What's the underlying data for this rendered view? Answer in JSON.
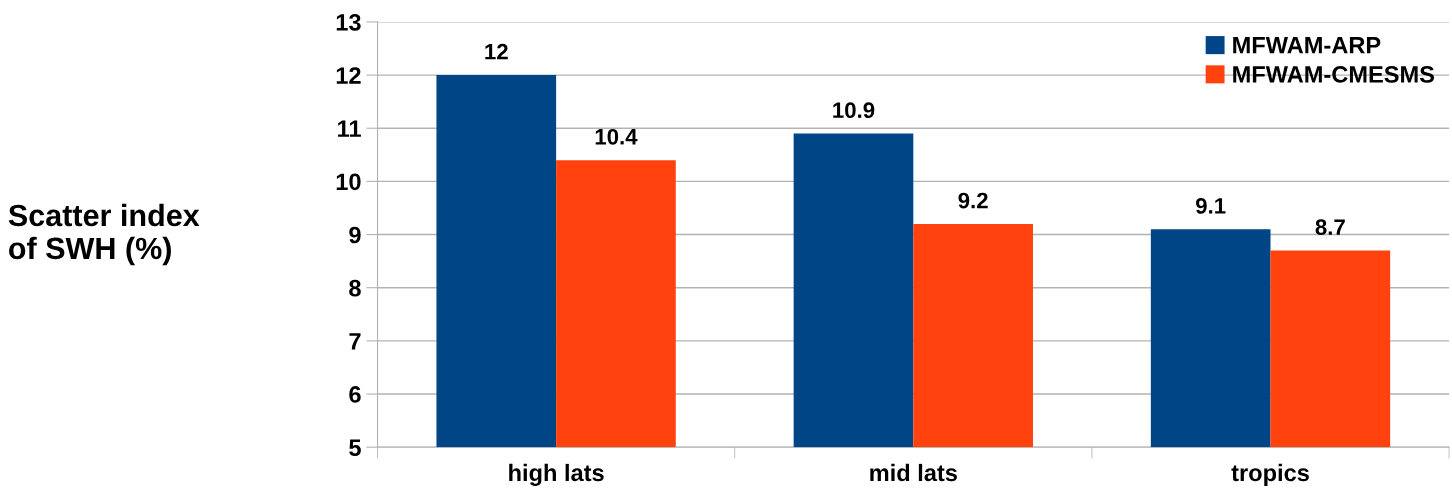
{
  "chart_data": {
    "type": "bar",
    "ylabel": "Scatter index\nof SWH (%)",
    "categories": [
      "high lats",
      "mid lats",
      "tropics"
    ],
    "series": [
      {
        "name": "MFWAM-ARP",
        "color": "#004586",
        "values": [
          12,
          10.9,
          9.1
        ]
      },
      {
        "name": "MFWAM-CMESMS",
        "color": "#ff420e",
        "values": [
          10.4,
          9.2,
          8.7
        ]
      }
    ],
    "ylim": [
      5,
      13
    ],
    "yticks": [
      5,
      6,
      7,
      8,
      9,
      10,
      11,
      12,
      13
    ],
    "grid": "y",
    "legend": "top right",
    "data_labels": true
  }
}
